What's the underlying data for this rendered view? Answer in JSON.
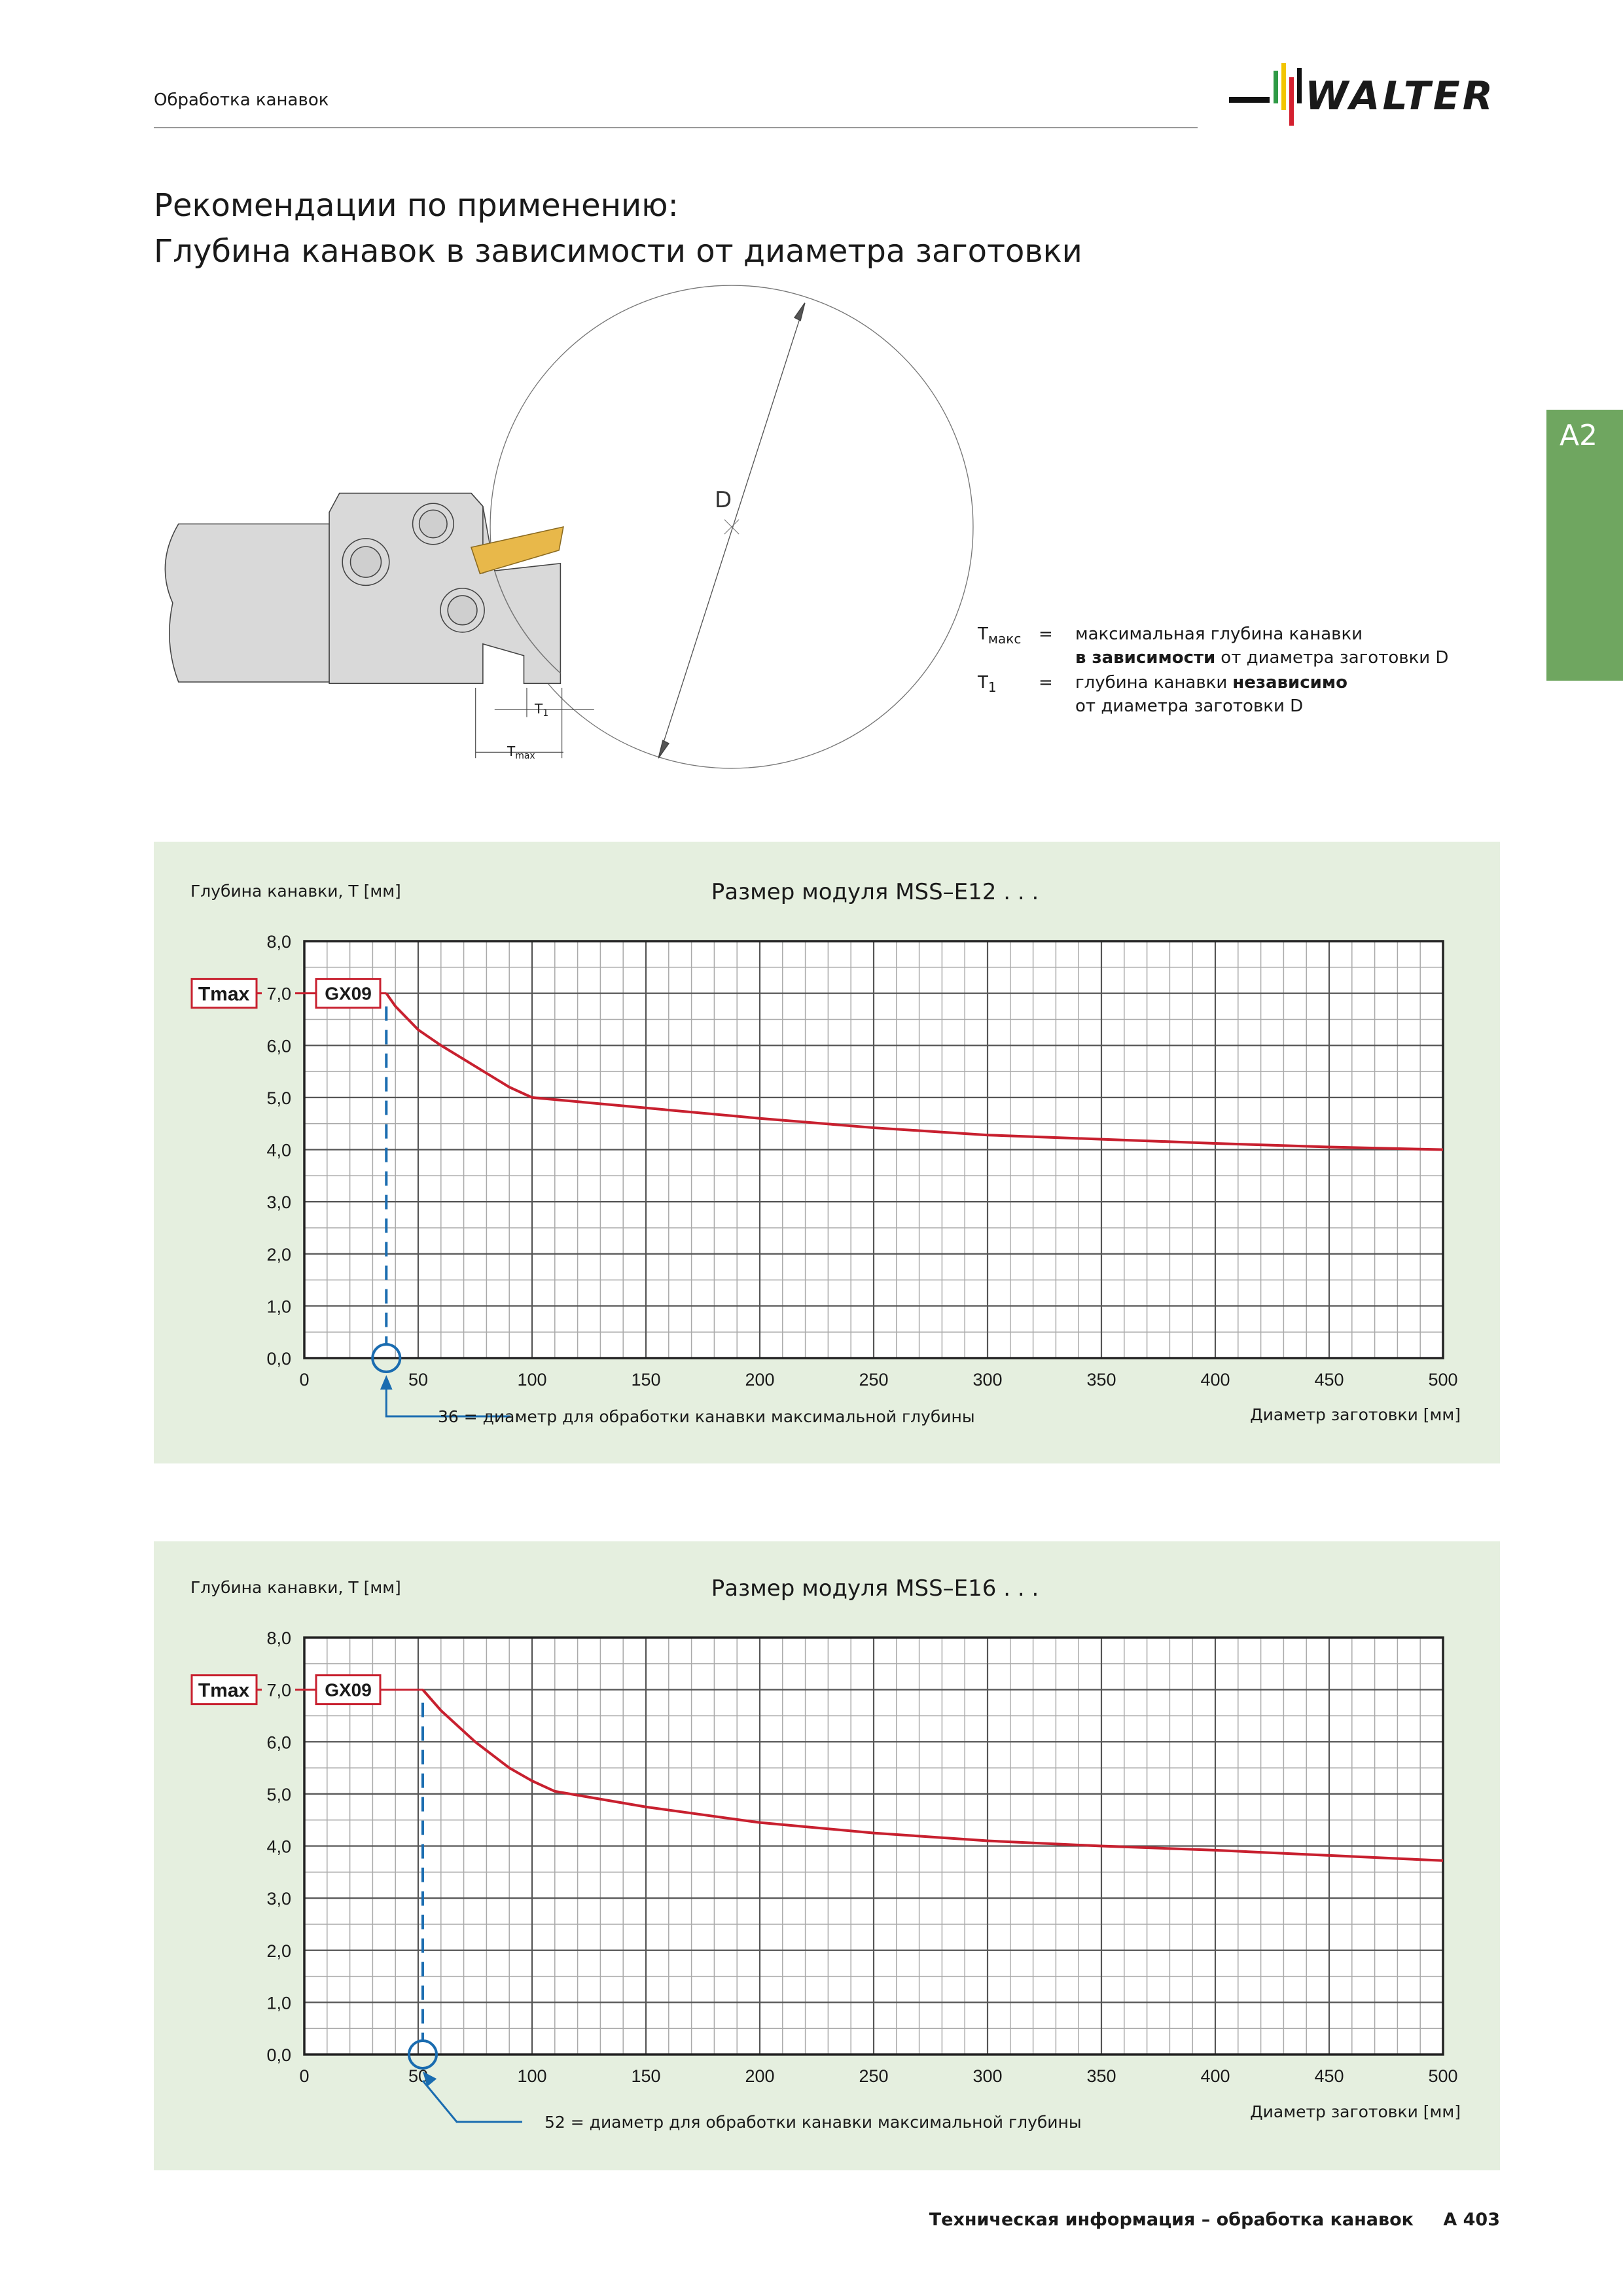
{
  "header": {
    "section": "Обработка канавок",
    "logo": "WALTER",
    "tab": "A2"
  },
  "title": {
    "line1": "Рекомендации по применению:",
    "line2": "Глубина канавок в зависимости от диаметра заготовки"
  },
  "diagram": {
    "d_label": "D",
    "t1": {
      "main": "T",
      "sub": "1"
    },
    "tmax": {
      "main": "T",
      "sub": "max"
    }
  },
  "legend": [
    {
      "symbol": "T",
      "sub": "макс",
      "eq": "=",
      "line1": [
        "максимальная глубина канавки"
      ],
      "line2": [
        "в зависимости",
        "от диаметра заготовки D"
      ]
    },
    {
      "symbol": "T",
      "sub": "1",
      "eq": "=",
      "line1": [
        "глубина канавки",
        "независимо"
      ],
      "line2": [
        "от диаметра заготовки D"
      ]
    }
  ],
  "chart_data": [
    {
      "type": "line",
      "title": "Размер модуля MSS–E12 . . .",
      "y_label": "Глубина канавки, T [мм]",
      "x_label": "Диаметр заготовки [мм]",
      "x": [
        36,
        40,
        50,
        60,
        75,
        90,
        100,
        150,
        200,
        250,
        300,
        350,
        400,
        450,
        500
      ],
      "series": [
        {
          "color": "#c8202f",
          "values": [
            7.0,
            6.75,
            6.3,
            6.0,
            5.6,
            5.2,
            5.0,
            4.8,
            4.6,
            4.42,
            4.28,
            4.2,
            4.12,
            4.05,
            4.0
          ]
        }
      ],
      "xlim": [
        0,
        500
      ],
      "ylim": [
        0,
        8
      ],
      "xticks": [
        0,
        50,
        100,
        150,
        200,
        250,
        300,
        350,
        400,
        450,
        500
      ],
      "yticks": [
        {
          "value": 0,
          "label": "0,0"
        },
        {
          "value": 1,
          "label": "1,0"
        },
        {
          "value": 2,
          "label": "2,0"
        },
        {
          "value": 3,
          "label": "3,0"
        },
        {
          "value": 4,
          "label": "4,0"
        },
        {
          "value": 5,
          "label": "5,0"
        },
        {
          "value": 6,
          "label": "6,0"
        },
        {
          "value": 7,
          "label": "7,0"
        },
        {
          "value": 8,
          "label": "8,0"
        }
      ],
      "grid": true,
      "x_minor_step": 10,
      "y_minor_step": 0.5,
      "tmax_label": "Tmax",
      "insert_label": "GX09",
      "note": "36 = диаметр для обработки канавки максимальной глубины",
      "annotation_color": "#1a6cb0"
    },
    {
      "type": "line",
      "title": "Размер модуля MSS–E16 . . .",
      "y_label": "Глубина канавки, T [мм]",
      "x_label": "Диаметр заготовки [мм]",
      "x": [
        52,
        60,
        75,
        90,
        100,
        110,
        150,
        200,
        250,
        300,
        350,
        400,
        450,
        500
      ],
      "series": [
        {
          "color": "#c8202f",
          "values": [
            7.0,
            6.6,
            6.0,
            5.5,
            5.25,
            5.05,
            4.75,
            4.45,
            4.25,
            4.1,
            4.0,
            3.92,
            3.82,
            3.72
          ]
        }
      ],
      "xlim": [
        0,
        500
      ],
      "ylim": [
        0,
        8
      ],
      "xticks": [
        0,
        50,
        100,
        150,
        200,
        250,
        300,
        350,
        400,
        450,
        500
      ],
      "yticks": [
        {
          "value": 0,
          "label": "0,0"
        },
        {
          "value": 1,
          "label": "1,0"
        },
        {
          "value": 2,
          "label": "2,0"
        },
        {
          "value": 3,
          "label": "3,0"
        },
        {
          "value": 4,
          "label": "4,0"
        },
        {
          "value": 5,
          "label": "5,0"
        },
        {
          "value": 6,
          "label": "6,0"
        },
        {
          "value": 7,
          "label": "7,0"
        },
        {
          "value": 8,
          "label": "8,0"
        }
      ],
      "grid": true,
      "x_minor_step": 10,
      "y_minor_step": 0.5,
      "tmax_label": "Tmax",
      "insert_label": "GX09",
      "note": "52 = диаметр для обработки канавки максимальной глубины",
      "annotation_color": "#1a6cb0"
    }
  ],
  "footer": {
    "text": "Техническая информация – обработка канавок",
    "page": "A 403"
  }
}
